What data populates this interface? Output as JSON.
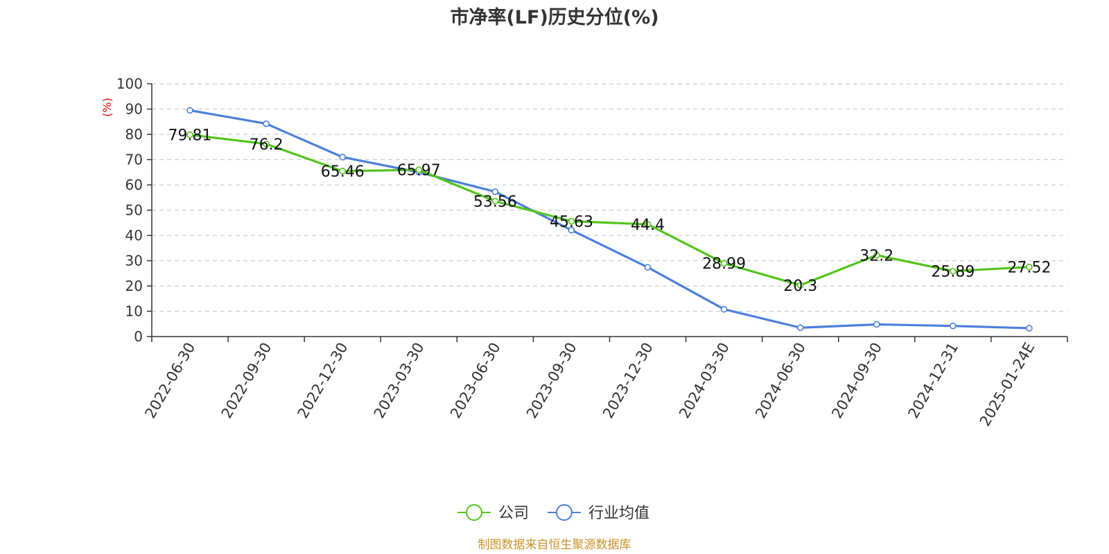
{
  "chart_data": {
    "type": "line",
    "title": "市净率(LF)历史分位(%)",
    "y_unit": "(%)",
    "ylim": [
      0,
      100
    ],
    "y_ticks": [
      0,
      10,
      20,
      30,
      40,
      50,
      60,
      70,
      80,
      90,
      100
    ],
    "grid": true,
    "legend_position": "bottom",
    "categories": [
      "2022-06-30",
      "2022-09-30",
      "2022-12-30",
      "2023-03-30",
      "2023-06-30",
      "2023-09-30",
      "2023-12-30",
      "2024-03-30",
      "2024-06-30",
      "2024-09-30",
      "2024-12-31",
      "2025-01-24E"
    ],
    "series": [
      {
        "name": "公司",
        "color": "#52c41a",
        "values": [
          79.81,
          76.2,
          65.46,
          65.97,
          53.56,
          45.63,
          44.4,
          28.99,
          20.3,
          32.2,
          25.89,
          27.52
        ],
        "labels": [
          "79.81",
          "76.2",
          "65.46",
          "65.97",
          "53.56",
          "45.63",
          "44.4",
          "28.99",
          "20.3",
          "32.2",
          "25.89",
          "27.52"
        ]
      },
      {
        "name": "行业均值",
        "color": "#4a7fdc",
        "values": [
          89.5,
          84.2,
          71.0,
          65.0,
          57.3,
          42.1,
          27.4,
          10.8,
          3.5,
          4.8,
          4.2,
          3.3
        ]
      }
    ],
    "source": "制图数据来自恒生聚源数据库"
  }
}
